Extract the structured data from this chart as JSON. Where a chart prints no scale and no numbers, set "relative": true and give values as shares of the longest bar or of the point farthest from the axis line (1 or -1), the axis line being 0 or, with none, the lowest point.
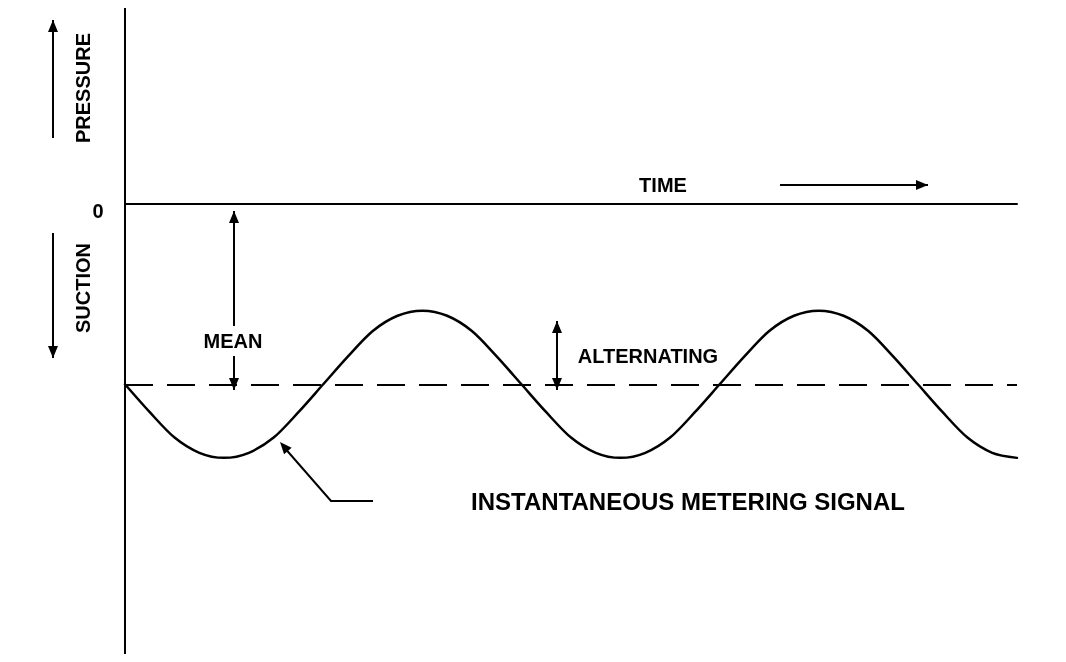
{
  "chart_data": {
    "type": "line",
    "relative": true,
    "categories": [
      null,
      null,
      null,
      null,
      null,
      null,
      null,
      null,
      null,
      null,
      null,
      null,
      null,
      null,
      null,
      null,
      null,
      null,
      null,
      null,
      null,
      null,
      null,
      null,
      null,
      null,
      null,
      null,
      null,
      null,
      null,
      null,
      null,
      null,
      null,
      null,
      null
    ],
    "series": [
      {
        "color": "#000000",
        "values": [
          -0.71,
          -0.82,
          -0.92,
          -0.98,
          -1.0,
          -0.98,
          -0.92,
          -0.82,
          -0.71,
          -0.6,
          -0.5,
          -0.44,
          -0.42,
          -0.44,
          -0.5,
          -0.6,
          -0.71,
          -0.82,
          -0.92,
          -0.98,
          -1.0,
          -0.98,
          -0.92,
          -0.82,
          -0.71,
          -0.6,
          -0.5,
          -0.44,
          -0.42,
          -0.44,
          -0.5,
          -0.6,
          -0.71,
          -0.82,
          -0.92,
          -0.98,
          -1.0
        ]
      }
    ],
    "marker": "none",
    "line_style": "solid",
    "ref_lines": [
      {
        "axis": "y",
        "value": -0.71,
        "color": "#000000",
        "line_style": "dashed"
      }
    ],
    "annotations": [
      "TIME",
      "PRESSURE",
      "SUCTION",
      "MEAN",
      "ALTERNATING",
      "INSTANTANEOUS METERING SIGNAL",
      "0"
    ]
  }
}
